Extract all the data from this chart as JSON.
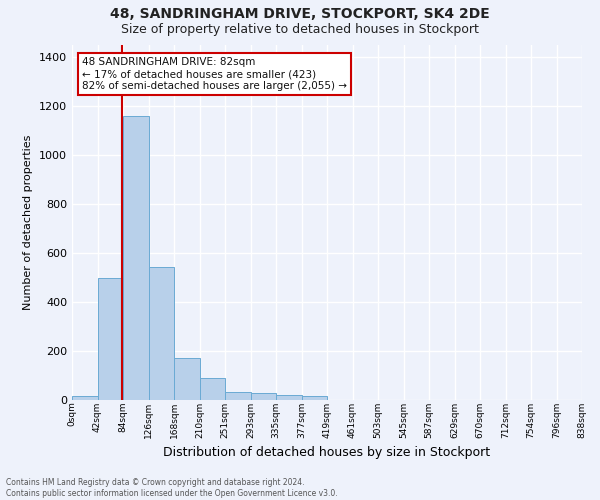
{
  "title1": "48, SANDRINGHAM DRIVE, STOCKPORT, SK4 2DE",
  "title2": "Size of property relative to detached houses in Stockport",
  "xlabel": "Distribution of detached houses by size in Stockport",
  "ylabel": "Number of detached properties",
  "footnote1": "Contains HM Land Registry data © Crown copyright and database right 2024.",
  "footnote2": "Contains public sector information licensed under the Open Government Licence v3.0.",
  "annotation_line1": "48 SANDRINGHAM DRIVE: 82sqm",
  "annotation_line2": "← 17% of detached houses are smaller (423)",
  "annotation_line3": "82% of semi-detached houses are larger (2,055) →",
  "bar_values": [
    15,
    500,
    1160,
    545,
    170,
    90,
    33,
    27,
    20,
    15,
    0,
    0,
    0,
    0,
    0,
    0,
    0,
    0,
    0,
    0
  ],
  "categories": [
    "0sqm",
    "42sqm",
    "84sqm",
    "126sqm",
    "168sqm",
    "210sqm",
    "251sqm",
    "293sqm",
    "335sqm",
    "377sqm",
    "419sqm",
    "461sqm",
    "503sqm",
    "545sqm",
    "587sqm",
    "629sqm",
    "670sqm",
    "712sqm",
    "754sqm",
    "796sqm",
    "838sqm"
  ],
  "bar_color": "#b8d0ea",
  "bar_edge_color": "#6aaad4",
  "ylim": [
    0,
    1450
  ],
  "yticks": [
    0,
    200,
    400,
    600,
    800,
    1000,
    1200,
    1400
  ],
  "background_color": "#eef2fb",
  "grid_color": "#ffffff",
  "annotation_box_color": "#ffffff",
  "annotation_box_edgecolor": "#cc0000",
  "red_line_color": "#cc0000",
  "title1_fontsize": 10,
  "title2_fontsize": 9,
  "ylabel_fontsize": 8,
  "xlabel_fontsize": 9,
  "footnote_fontsize": 5.5,
  "annot_fontsize": 7.5
}
